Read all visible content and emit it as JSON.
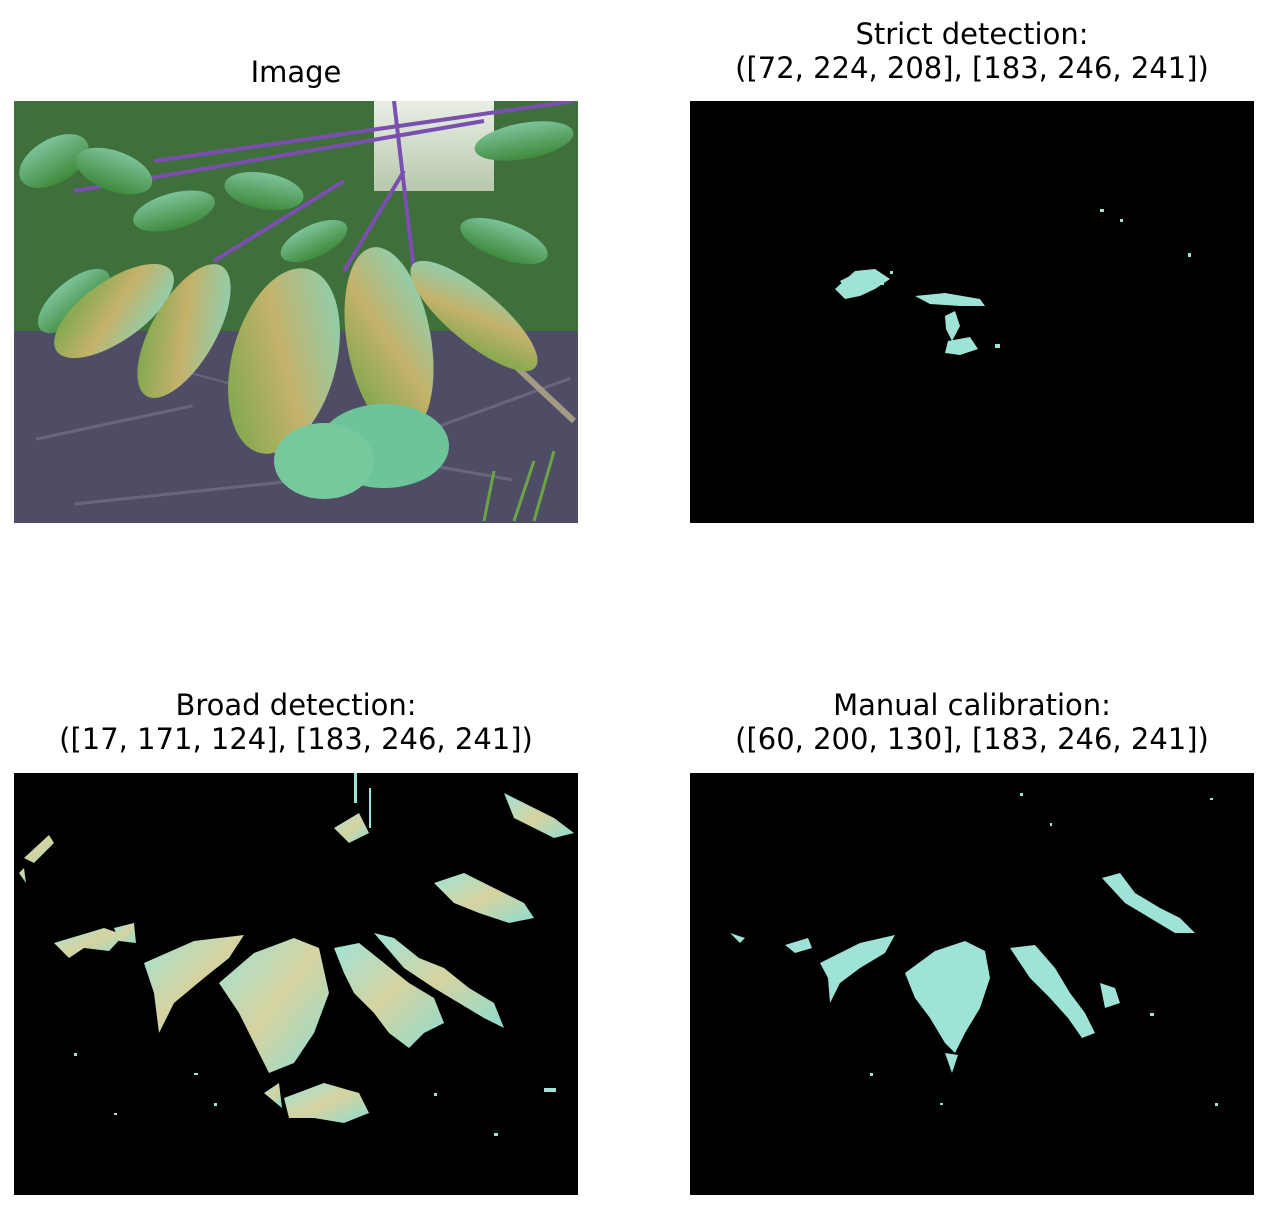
{
  "panels": [
    {
      "title": "Image",
      "title_line2": "",
      "kind": "photo"
    },
    {
      "title": "Strict detection:",
      "title_line2": "([72, 224, 208], [183, 246, 241])",
      "kind": "mask"
    },
    {
      "title": "Broad detection:",
      "title_line2": "([17, 171, 124], [183, 246, 241])",
      "kind": "mask"
    },
    {
      "title": "Manual calibration:",
      "title_line2": "([60, 200, 130], [183, 246, 241])",
      "kind": "mask"
    }
  ],
  "colors": {
    "background": "#ffffff",
    "mask_background": "#000000",
    "leaf_cyan": "#8fe0d0",
    "leaf_green": "#6fa84a",
    "leaf_yellow": "#c8b46a",
    "soil": "#5a5670",
    "stem_purple": "#7a4fb0"
  }
}
